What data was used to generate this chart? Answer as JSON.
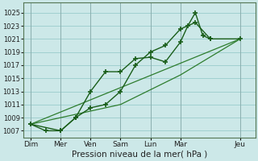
{
  "xlabel": "Pression niveau de la mer( hPa )",
  "bg_color": "#cce8e8",
  "grid_color": "#99cccc",
  "line_color_dark": "#1a5e1a",
  "line_color_mid": "#2e7d2e",
  "ylim": [
    1006,
    1026.5
  ],
  "yticks": [
    1007,
    1009,
    1011,
    1013,
    1015,
    1017,
    1019,
    1021,
    1023,
    1025
  ],
  "xtick_labels": [
    "Dim",
    "Mer",
    "Ven",
    "Sam",
    "Lun",
    "Mar",
    "Jeu"
  ],
  "xtick_positions": [
    0,
    2,
    4,
    6,
    8,
    10,
    14
  ],
  "xlim": [
    -0.5,
    15
  ],
  "series1_marked": {
    "x": [
      0,
      1,
      2,
      3,
      4,
      5,
      6,
      7,
      8,
      9,
      10,
      10.5,
      11,
      11.5,
      12
    ],
    "y": [
      1008.0,
      1007.0,
      1007.0,
      1009.0,
      1013.0,
      1016.0,
      1016.0,
      1018.0,
      1018.2,
      1017.5,
      1020.5,
      1023.0,
      1025.0,
      1021.5,
      1021.0
    ]
  },
  "series2_marked": {
    "x": [
      0,
      2,
      3,
      4,
      5,
      6,
      7,
      8,
      9,
      10,
      11,
      12,
      14
    ],
    "y": [
      1008.0,
      1007.0,
      1009.0,
      1010.5,
      1011.0,
      1013.0,
      1017.0,
      1019.0,
      1020.0,
      1022.5,
      1023.5,
      1021.0,
      1021.0
    ]
  },
  "series3_smooth": {
    "x": [
      0,
      14
    ],
    "y": [
      1008.0,
      1021.0
    ]
  },
  "series4_smooth": {
    "x": [
      0,
      6,
      10,
      14
    ],
    "y": [
      1008.0,
      1011.0,
      1015.5,
      1021.0
    ]
  }
}
